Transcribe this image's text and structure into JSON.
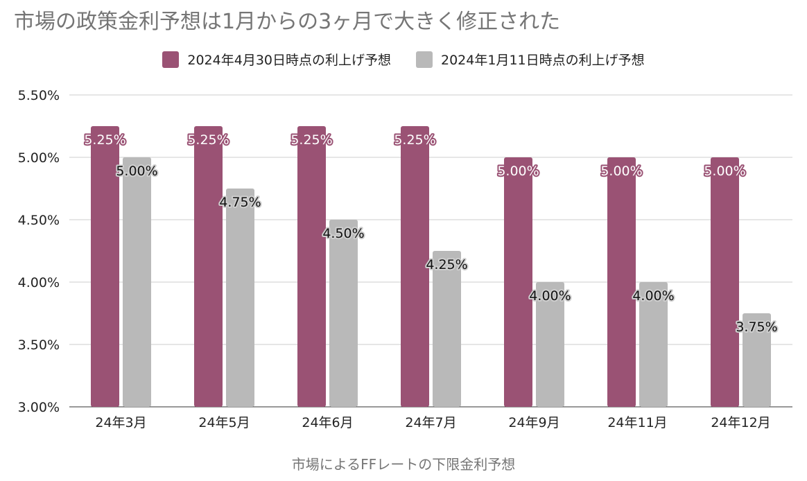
{
  "chart_data": {
    "type": "bar",
    "title": "市場の政策金利予想は1月からの3ヶ月で大きく修正された",
    "xlabel": "市場によるFFレートの下限金利予想",
    "ylabel": "",
    "ylim": [
      3.0,
      5.5
    ],
    "yticks": [
      "5.50%",
      "5.00%",
      "4.50%",
      "4.00%",
      "3.50%",
      "3.00%"
    ],
    "ytick_values": [
      5.5,
      5.0,
      4.5,
      4.0,
      3.5,
      3.0
    ],
    "grid": true,
    "legend_position": "top",
    "categories": [
      "24年3月",
      "24年5月",
      "24年6月",
      "24年7月",
      "24年9月",
      "24年11月",
      "24年12月"
    ],
    "series": [
      {
        "name": "2024年4月30日時点の利上げ予想",
        "color": "#9a5274",
        "values": [
          5.25,
          5.25,
          5.25,
          5.25,
          5.0,
          5.0,
          5.0
        ],
        "labels": [
          "5.25%",
          "5.25%",
          "5.25%",
          "5.25%",
          "5.00%",
          "5.00%",
          "5.00%"
        ]
      },
      {
        "name": "2024年1月11日時点の利上げ予想",
        "color": "#b9b9b9",
        "values": [
          5.0,
          4.75,
          4.5,
          4.25,
          4.0,
          4.0,
          3.75
        ],
        "labels": [
          "5.00%",
          "4.75%",
          "4.50%",
          "4.25%",
          "4.00%",
          "4.00%",
          "3.75%"
        ]
      }
    ]
  }
}
